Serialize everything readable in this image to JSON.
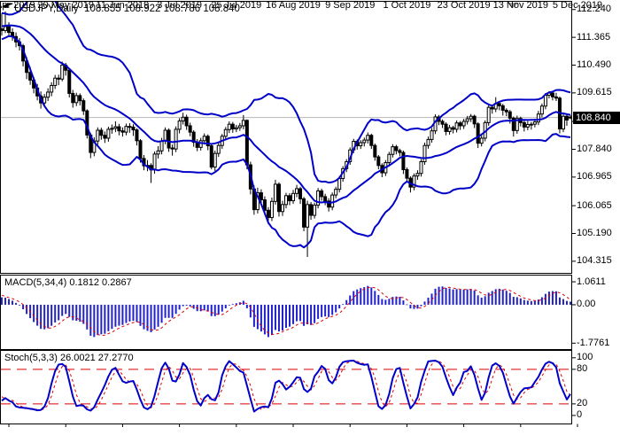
{
  "window": {
    "title_symbol": "USDJPY,Daily",
    "title_ohlc": "108.855 108.922 108.786 108.840"
  },
  "colors": {
    "background": "#ffffff",
    "border": "#000000",
    "bands": "#0000c8",
    "histogram": "#2222cc",
    "signal": "#dd0000",
    "stoch_main": "#0000c8",
    "stoch_signal": "#dd0000",
    "levels": "#dd0000",
    "bull_fill": "#ffffff",
    "bear_fill": "#000000",
    "candle_outline": "#000000",
    "price_line": "#b8b8b8",
    "price_box_bg": "#000000",
    "price_box_text": "#ffffff",
    "shift_marker": "#a8a8a8",
    "text": "#000000"
  },
  "main_axis": {
    "labels": [
      {
        "text": "112.240",
        "value": 112.24
      },
      {
        "text": "111.365",
        "value": 111.365
      },
      {
        "text": "110.490",
        "value": 110.49
      },
      {
        "text": "109.615",
        "value": 109.615
      },
      {
        "text": "108.715",
        "value": 108.715
      },
      {
        "text": "107.840",
        "value": 107.84
      },
      {
        "text": "106.965",
        "value": 106.965
      },
      {
        "text": "106.065",
        "value": 106.065
      },
      {
        "text": "105.190",
        "value": 105.19
      },
      {
        "text": "104.315",
        "value": 104.315
      }
    ],
    "current": {
      "text": "108.840",
      "value": 108.84
    }
  },
  "macd_pane": {
    "label": "MACD(5,34,4) 0.1812 0.2867",
    "labels": [
      {
        "text": "1.0611",
        "value": 1.0611
      },
      {
        "text": "0.00",
        "value": 0
      },
      {
        "text": "-1.7761",
        "value": -1.7761
      }
    ]
  },
  "stoch_pane": {
    "label": "Stoch(5,3,3) 26.0021 27.2770",
    "labels": [
      {
        "text": "100",
        "value": 100
      },
      {
        "text": "80",
        "value": 80
      },
      {
        "text": "20",
        "value": 20
      },
      {
        "text": "0",
        "value": 0
      }
    ],
    "levels": [
      80,
      20
    ]
  },
  "time_axis": {
    "labels": [
      {
        "index": 2,
        "text": "26 Apr 2019"
      },
      {
        "index": 18,
        "text": "20 May 2019"
      },
      {
        "index": 34,
        "text": "11 Jun 2019"
      },
      {
        "index": 50,
        "text": "3 Jul 2019"
      },
      {
        "index": 66,
        "text": "25 Jul 2019"
      },
      {
        "index": 82,
        "text": "16 Aug 2019"
      },
      {
        "index": 98,
        "text": "9 Sep 2019"
      },
      {
        "index": 114,
        "text": "1 Oct 2019"
      },
      {
        "index": 130,
        "text": "23 Oct 2019"
      },
      {
        "index": 146,
        "text": "13 Nov 2019"
      },
      {
        "index": 162,
        "text": "5 Dec 2019"
      }
    ]
  },
  "chart_data": {
    "type": "candlestick",
    "symbol": "USDJPY",
    "timeframe": "Daily",
    "ohlc_current": {
      "open": 108.855,
      "high": 108.922,
      "low": 108.786,
      "close": 108.84
    },
    "price_range": [
      104.315,
      112.24
    ],
    "indicators": [
      {
        "name": "Bollinger Bands",
        "period": 20,
        "deviation": 2,
        "applies_to": "close"
      },
      {
        "name": "MACD",
        "fast_ema": 5,
        "slow_ema": 34,
        "signal_sma": 4,
        "display_values": [
          0.1812,
          0.2867
        ],
        "range": [
          -1.7761,
          1.0611
        ]
      },
      {
        "name": "Stochastic",
        "k": 5,
        "d": 3,
        "slowing": 3,
        "display_values": [
          26.0021,
          27.277
        ],
        "levels": [
          80,
          20
        ],
        "range": [
          0,
          100
        ]
      }
    ],
    "warmup_closes": [
      110.0,
      110.15,
      110.05,
      110.3,
      110.45,
      110.35,
      110.55,
      110.7,
      110.6,
      110.85,
      111.0,
      110.9,
      111.1,
      111.25,
      111.15,
      111.35,
      111.3,
      111.45,
      111.6,
      111.5,
      111.7,
      111.85,
      111.75,
      111.95,
      112.05,
      111.9,
      112.0,
      111.8,
      111.7,
      111.85,
      111.95,
      111.75,
      111.6,
      111.65
    ],
    "candles": [
      [
        111.63,
        112.12,
        111.42,
        111.58
      ],
      [
        111.58,
        112.18,
        111.5,
        111.7
      ],
      [
        111.7,
        111.84,
        111.38,
        111.52
      ],
      [
        111.52,
        111.65,
        111.26,
        111.39
      ],
      [
        111.39,
        111.52,
        111.05,
        111.22
      ],
      [
        111.22,
        111.34,
        110.95,
        111.1
      ],
      [
        111.1,
        111.16,
        110.45,
        110.62
      ],
      [
        110.62,
        110.75,
        110.05,
        110.26
      ],
      [
        110.26,
        110.44,
        109.87,
        110.02
      ],
      [
        110.02,
        110.12,
        109.6,
        109.77
      ],
      [
        109.77,
        109.9,
        109.38,
        109.52
      ],
      [
        109.52,
        109.66,
        109.12,
        109.3
      ],
      [
        109.3,
        109.58,
        109.18,
        109.48
      ],
      [
        109.48,
        109.76,
        109.36,
        109.64
      ],
      [
        109.64,
        109.95,
        109.51,
        109.85
      ],
      [
        109.85,
        110.18,
        109.74,
        110.08
      ],
      [
        110.08,
        110.19,
        109.86,
        110.05
      ],
      [
        110.05,
        110.6,
        109.98,
        110.49
      ],
      [
        110.49,
        110.56,
        110.16,
        110.33
      ],
      [
        110.33,
        110.38,
        109.47,
        109.6
      ],
      [
        109.6,
        109.71,
        109.15,
        109.31
      ],
      [
        109.31,
        109.62,
        109.2,
        109.53
      ],
      [
        109.53,
        109.6,
        109.22,
        109.37
      ],
      [
        109.37,
        109.44,
        108.92,
        109.05
      ],
      [
        109.05,
        109.1,
        108.18,
        108.29
      ],
      [
        108.29,
        108.36,
        107.56,
        107.74
      ],
      [
        107.74,
        108.22,
        107.62,
        108.1
      ],
      [
        108.1,
        108.53,
        107.98,
        108.44
      ],
      [
        108.44,
        108.52,
        108.14,
        108.28
      ],
      [
        108.28,
        108.4,
        108.04,
        108.19
      ],
      [
        108.19,
        108.55,
        108.08,
        108.47
      ],
      [
        108.47,
        108.62,
        108.33,
        108.5
      ],
      [
        108.5,
        108.72,
        108.38,
        108.55
      ],
      [
        108.55,
        108.64,
        108.28,
        108.42
      ],
      [
        108.42,
        108.53,
        108.24,
        108.38
      ],
      [
        108.38,
        108.65,
        108.28,
        108.56
      ],
      [
        108.56,
        108.66,
        108.36,
        108.54
      ],
      [
        108.54,
        108.63,
        108.26,
        108.45
      ],
      [
        108.45,
        108.5,
        107.96,
        108.11
      ],
      [
        108.11,
        108.16,
        107.42,
        107.55
      ],
      [
        107.55,
        107.66,
        107.18,
        107.32
      ],
      [
        107.32,
        107.5,
        107.15,
        107.33
      ],
      [
        107.33,
        107.4,
        106.78,
        107.19
      ],
      [
        107.19,
        107.77,
        107.07,
        107.69
      ],
      [
        107.69,
        107.94,
        107.55,
        107.79
      ],
      [
        107.79,
        108.2,
        107.68,
        108.1
      ],
      [
        108.1,
        108.53,
        108.0,
        108.44
      ],
      [
        108.44,
        108.5,
        107.76,
        107.88
      ],
      [
        107.88,
        107.99,
        107.64,
        107.85
      ],
      [
        107.85,
        108.56,
        107.75,
        108.47
      ],
      [
        108.47,
        108.82,
        108.34,
        108.73
      ],
      [
        108.73,
        108.99,
        108.62,
        108.85
      ],
      [
        108.85,
        108.93,
        108.45,
        108.58
      ],
      [
        108.58,
        108.68,
        108.25,
        108.38
      ],
      [
        108.38,
        108.44,
        107.92,
        108.06
      ],
      [
        108.06,
        108.16,
        107.78,
        107.9
      ],
      [
        107.9,
        108.2,
        107.8,
        108.11
      ],
      [
        108.11,
        108.34,
        107.99,
        108.25
      ],
      [
        108.25,
        108.31,
        107.81,
        107.95
      ],
      [
        107.95,
        108.0,
        107.21,
        107.28
      ],
      [
        107.28,
        107.8,
        107.16,
        107.71
      ],
      [
        107.71,
        108.05,
        107.6,
        107.96
      ],
      [
        107.96,
        108.32,
        107.85,
        108.25
      ],
      [
        108.25,
        108.54,
        108.14,
        108.46
      ],
      [
        108.46,
        108.72,
        108.35,
        108.63
      ],
      [
        108.63,
        108.7,
        108.36,
        108.48
      ],
      [
        108.48,
        108.61,
        108.38,
        108.52
      ],
      [
        108.52,
        108.67,
        108.42,
        108.58
      ],
      [
        108.58,
        108.92,
        108.47,
        108.75
      ],
      [
        108.75,
        108.78,
        107.21,
        107.35
      ],
      [
        107.35,
        107.45,
        106.42,
        106.59
      ],
      [
        106.59,
        106.7,
        105.78,
        105.94
      ],
      [
        105.94,
        106.63,
        105.82,
        106.47
      ],
      [
        106.47,
        106.58,
        106.08,
        106.25
      ],
      [
        106.25,
        106.36,
        105.76,
        105.92
      ],
      [
        105.92,
        106.02,
        105.48,
        105.69
      ],
      [
        105.69,
        106.32,
        105.58,
        106.2
      ],
      [
        106.2,
        106.88,
        106.1,
        106.74
      ],
      [
        106.74,
        106.8,
        105.72,
        105.88
      ],
      [
        105.88,
        106.22,
        105.74,
        106.1
      ],
      [
        106.1,
        106.47,
        105.98,
        106.38
      ],
      [
        106.38,
        106.46,
        106.08,
        106.22
      ],
      [
        106.22,
        106.56,
        106.12,
        106.45
      ],
      [
        106.45,
        106.72,
        106.33,
        106.6
      ],
      [
        106.6,
        106.66,
        106.12,
        106.28
      ],
      [
        106.28,
        106.34,
        105.26,
        105.39
      ],
      [
        105.39,
        106.22,
        104.45,
        106.1
      ],
      [
        106.1,
        106.18,
        105.62,
        105.76
      ],
      [
        105.76,
        106.16,
        105.66,
        106.08
      ],
      [
        106.08,
        106.62,
        105.98,
        106.53
      ],
      [
        106.53,
        106.6,
        106.22,
        106.35
      ],
      [
        106.35,
        106.44,
        106.08,
        106.21
      ],
      [
        106.21,
        106.3,
        105.88,
        106.02
      ],
      [
        106.02,
        106.48,
        105.92,
        106.4
      ],
      [
        106.4,
        106.66,
        106.3,
        106.58
      ],
      [
        106.58,
        107.0,
        106.48,
        106.92
      ],
      [
        106.92,
        107.31,
        106.82,
        107.23
      ],
      [
        107.23,
        107.53,
        107.12,
        107.45
      ],
      [
        107.45,
        107.9,
        107.35,
        107.82
      ],
      [
        107.82,
        108.17,
        107.72,
        108.09
      ],
      [
        108.09,
        108.15,
        107.83,
        107.95
      ],
      [
        107.95,
        108.13,
        107.85,
        108.05
      ],
      [
        108.05,
        108.21,
        107.93,
        108.13
      ],
      [
        108.13,
        108.37,
        108.02,
        108.28
      ],
      [
        108.28,
        108.33,
        107.85,
        107.96
      ],
      [
        107.96,
        108.02,
        107.48,
        107.6
      ],
      [
        107.6,
        107.66,
        107.21,
        107.33
      ],
      [
        107.33,
        107.4,
        106.96,
        107.1
      ],
      [
        107.1,
        107.5,
        107.0,
        107.42
      ],
      [
        107.42,
        107.76,
        107.32,
        107.68
      ],
      [
        107.68,
        108.0,
        107.58,
        107.92
      ],
      [
        107.92,
        107.98,
        107.68,
        107.8
      ],
      [
        107.8,
        107.86,
        107.62,
        107.74
      ],
      [
        107.74,
        107.8,
        107.06,
        107.2
      ],
      [
        107.2,
        107.27,
        106.81,
        106.93
      ],
      [
        106.93,
        106.99,
        106.48,
        106.65
      ],
      [
        106.65,
        107.08,
        106.55,
        107.0
      ],
      [
        107.0,
        107.18,
        106.88,
        107.08
      ],
      [
        107.08,
        107.53,
        106.98,
        107.45
      ],
      [
        107.45,
        108.05,
        107.35,
        107.96
      ],
      [
        107.96,
        108.24,
        107.86,
        108.15
      ],
      [
        108.15,
        108.51,
        108.05,
        108.42
      ],
      [
        108.42,
        108.94,
        108.32,
        108.86
      ],
      [
        108.86,
        108.92,
        108.6,
        108.72
      ],
      [
        108.72,
        108.78,
        108.51,
        108.63
      ],
      [
        108.63,
        108.69,
        108.28,
        108.4
      ],
      [
        108.4,
        108.61,
        108.3,
        108.52
      ],
      [
        108.52,
        108.58,
        108.34,
        108.47
      ],
      [
        108.47,
        108.75,
        108.37,
        108.67
      ],
      [
        108.67,
        108.73,
        108.45,
        108.58
      ],
      [
        108.58,
        108.8,
        108.48,
        108.72
      ],
      [
        108.72,
        108.89,
        108.62,
        108.8
      ],
      [
        108.8,
        108.95,
        108.7,
        108.88
      ],
      [
        108.88,
        108.93,
        108.51,
        108.64
      ],
      [
        108.64,
        108.69,
        107.88,
        108.03
      ],
      [
        108.03,
        108.28,
        107.93,
        108.19
      ],
      [
        108.19,
        108.75,
        108.09,
        108.68
      ],
      [
        108.68,
        109.24,
        108.58,
        109.16
      ],
      [
        109.16,
        109.22,
        108.96,
        109.11
      ],
      [
        109.11,
        109.48,
        109.01,
        109.28
      ],
      [
        109.28,
        109.34,
        109.07,
        109.21
      ],
      [
        109.21,
        109.27,
        108.9,
        109.07
      ],
      [
        109.07,
        109.13,
        108.88,
        109.02
      ],
      [
        109.02,
        109.08,
        108.65,
        108.82
      ],
      [
        108.82,
        108.87,
        108.24,
        108.43
      ],
      [
        108.43,
        108.9,
        108.33,
        108.81
      ],
      [
        108.81,
        108.87,
        108.56,
        108.68
      ],
      [
        108.68,
        108.74,
        108.4,
        108.54
      ],
      [
        108.54,
        108.73,
        108.44,
        108.62
      ],
      [
        108.62,
        108.7,
        108.46,
        108.63
      ],
      [
        108.63,
        108.8,
        108.53,
        108.7
      ],
      [
        108.7,
        109.05,
        108.6,
        108.95
      ],
      [
        108.95,
        109.28,
        108.85,
        109.2
      ],
      [
        109.2,
        109.61,
        109.1,
        109.54
      ],
      [
        109.54,
        109.67,
        109.44,
        109.61
      ],
      [
        109.61,
        109.67,
        109.38,
        109.49
      ],
      [
        109.49,
        109.62,
        109.36,
        109.45
      ],
      [
        109.45,
        109.5,
        108.34,
        108.48
      ],
      [
        108.48,
        108.98,
        108.38,
        108.88
      ],
      [
        108.88,
        108.94,
        108.58,
        108.76
      ],
      [
        108.855,
        108.922,
        108.786,
        108.84
      ]
    ]
  }
}
